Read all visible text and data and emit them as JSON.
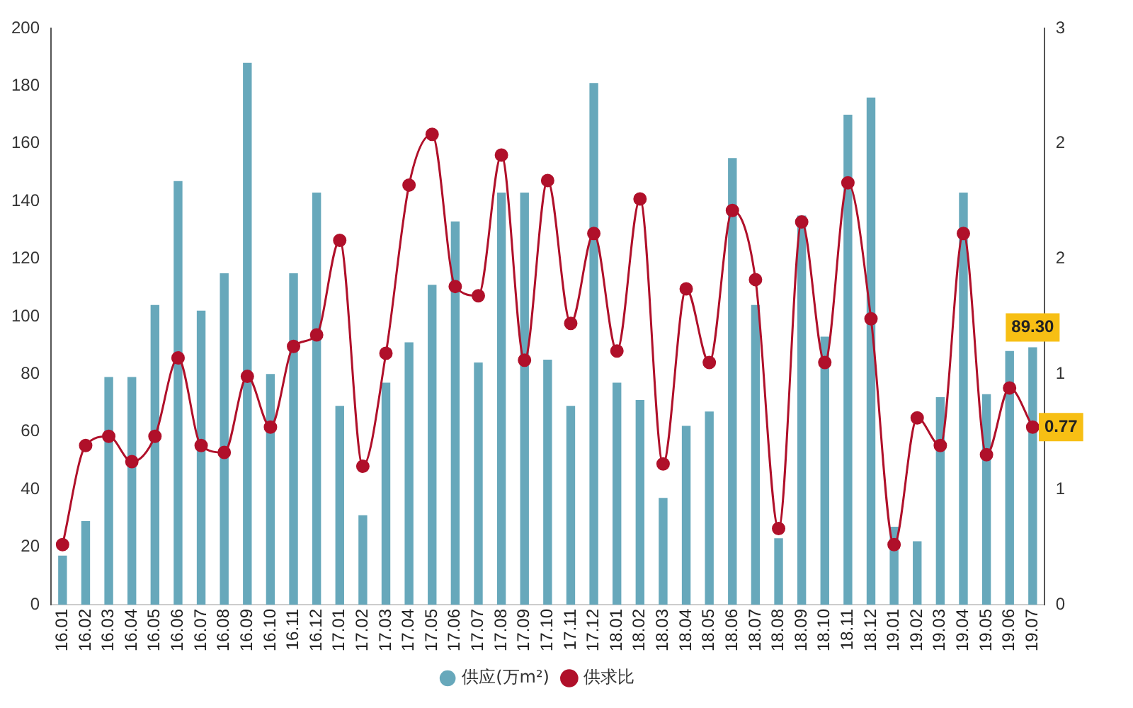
{
  "chart_data": {
    "type": "bar",
    "categories": [
      "16.01",
      "16.02",
      "16.03",
      "16.04",
      "16.05",
      "16.06",
      "16.07",
      "16.08",
      "16.09",
      "16.10",
      "16.11",
      "16.12",
      "17.01",
      "17.02",
      "17.03",
      "17.04",
      "17.05",
      "17.06",
      "17.07",
      "17.08",
      "17.09",
      "17.10",
      "17.11",
      "17.12",
      "18.01",
      "18.02",
      "18.03",
      "18.04",
      "18.05",
      "18.06",
      "18.07",
      "18.08",
      "18.09",
      "18.10",
      "18.11",
      "18.12",
      "19.01",
      "19.02",
      "19.03",
      "19.04",
      "19.05",
      "19.06",
      "19.07"
    ],
    "series": [
      {
        "name": "供应(万m²)",
        "color": "#67a8bb",
        "values": [
          17,
          29,
          79,
          79,
          104,
          147,
          102,
          115,
          188,
          80,
          115,
          143,
          69,
          31,
          77,
          91,
          111,
          133,
          84,
          143,
          143,
          85,
          69,
          181,
          77,
          71,
          37,
          62,
          67,
          155,
          104,
          23,
          135,
          93,
          170,
          176,
          27,
          22,
          72,
          143,
          73,
          88,
          89.3
        ],
        "value_labels": [
          null,
          null,
          null,
          null,
          null,
          null,
          null,
          null,
          null,
          null,
          null,
          null,
          null,
          null,
          null,
          null,
          null,
          null,
          null,
          null,
          null,
          null,
          null,
          null,
          null,
          null,
          null,
          null,
          null,
          null,
          null,
          null,
          null,
          null,
          null,
          null,
          null,
          null,
          null,
          null,
          null,
          null,
          "89.30"
        ]
      },
      {
        "name": "供求比",
        "type": "line",
        "axis": "y2",
        "color": "#b0102a",
        "marker": "circle",
        "values": [
          0.26,
          0.69,
          0.73,
          0.62,
          0.73,
          1.07,
          0.69,
          0.66,
          0.99,
          0.77,
          1.12,
          1.17,
          1.58,
          0.6,
          1.09,
          1.82,
          2.04,
          1.38,
          1.34,
          1.95,
          1.06,
          1.84,
          1.22,
          1.61,
          1.1,
          1.76,
          0.61,
          1.37,
          1.05,
          1.71,
          1.41,
          0.33,
          1.66,
          1.05,
          1.83,
          1.24,
          0.26,
          0.81,
          0.69,
          1.61,
          0.65,
          0.94,
          0.77
        ],
        "value_labels": [
          null,
          null,
          null,
          null,
          null,
          null,
          null,
          null,
          null,
          null,
          null,
          null,
          null,
          null,
          null,
          null,
          null,
          null,
          null,
          null,
          null,
          null,
          null,
          null,
          null,
          null,
          null,
          null,
          null,
          null,
          null,
          null,
          null,
          null,
          null,
          null,
          null,
          null,
          null,
          null,
          null,
          null,
          "0.77"
        ]
      }
    ],
    "ylim": [
      0,
      200
    ],
    "yticks": [
      0,
      20,
      40,
      60,
      80,
      100,
      120,
      140,
      160,
      180,
      200
    ],
    "y2lim": [
      0,
      2.5
    ],
    "y2ticks": [
      0,
      {
        "value": 0.5,
        "label": "1"
      },
      1,
      {
        "value": 1.5,
        "label": "2"
      },
      2,
      {
        "value": 2.5,
        "label": "3"
      }
    ],
    "grid": false,
    "legend": "bottom"
  }
}
